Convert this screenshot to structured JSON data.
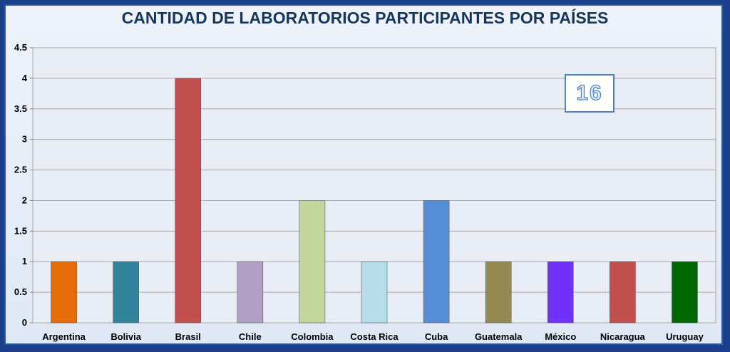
{
  "chart_data": {
    "type": "bar",
    "title": "CANTIDAD DE LABORATORIOS PARTICIPANTES POR PAÍSES",
    "categories": [
      "Argentina",
      "Bolivia",
      "Brasil",
      "Chile",
      "Colombia",
      "Costa Rica",
      "Cuba",
      "Guatemala",
      "México",
      "Nicaragua",
      "Uruguay"
    ],
    "values": [
      1,
      1,
      4,
      1,
      2,
      1,
      2,
      1,
      1,
      1,
      1
    ],
    "colors": [
      "#e46c0a",
      "#31849b",
      "#c0504d",
      "#b2a1c7",
      "#c3d69b",
      "#b7dde8",
      "#558ed5",
      "#938953",
      "#7030ff",
      "#c0504d",
      "#006600"
    ],
    "yticks": [
      "0",
      "0.5",
      "1",
      "1.5",
      "2",
      "2.5",
      "3",
      "3.5",
      "4",
      "4.5"
    ],
    "ylim": [
      0,
      4.5
    ],
    "grid": true,
    "legend": "none",
    "annotation": "16"
  }
}
